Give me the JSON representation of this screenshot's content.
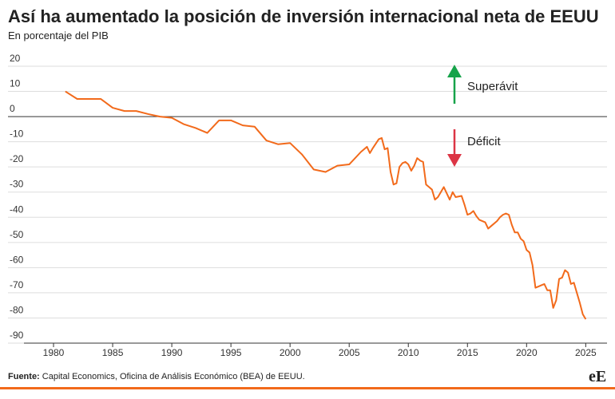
{
  "chart_data": {
    "type": "line",
    "title": "Así ha aumentado la posición de inversión internacional neta de EEUU",
    "subtitle": "En porcentaje del PIB",
    "annotations": [
      "Superávit",
      "Déficit"
    ],
    "source_label": "Fuente:",
    "source_text": "Capital Economics, Oficina de Análisis Económico (BEA) de EEUU.",
    "logo": "eE",
    "xlim": [
      1977.5,
      2026.8
    ],
    "xticks": [
      1980,
      1985,
      1990,
      1995,
      2000,
      2005,
      2010,
      2015,
      2020,
      2025
    ],
    "ylim": [
      -90,
      20
    ],
    "yticks": [
      -90,
      -80,
      -70,
      -60,
      -50,
      -40,
      -30,
      -20,
      -10,
      0,
      10,
      20
    ],
    "grid": true,
    "x": [
      1981,
      1982,
      1983,
      1984,
      1985,
      1986,
      1987,
      1988,
      1989,
      1990,
      1991,
      1992,
      1993,
      1994,
      1995,
      1996,
      1997,
      1998,
      1999,
      2000,
      2001,
      2002,
      2003,
      2004,
      2005,
      2006,
      2006.5,
      2006.75,
      2007,
      2007.5,
      2007.75,
      2008,
      2008.25,
      2008.5,
      2008.75,
      2009,
      2009.25,
      2009.5,
      2009.75,
      2010,
      2010.25,
      2010.5,
      2010.75,
      2011,
      2011.25,
      2011.5,
      2011.75,
      2012,
      2012.25,
      2012.5,
      2012.75,
      2013,
      2013.25,
      2013.5,
      2013.75,
      2014,
      2014.5,
      2014.75,
      2015,
      2015.25,
      2015.5,
      2015.75,
      2016,
      2016.5,
      2016.75,
      2017,
      2017.5,
      2017.75,
      2018,
      2018.25,
      2018.5,
      2018.75,
      2019,
      2019.25,
      2019.5,
      2019.75,
      2020,
      2020.25,
      2020.5,
      2020.75,
      2021,
      2021.25,
      2021.5,
      2021.75,
      2022,
      2022.25,
      2022.5,
      2022.75,
      2023,
      2023.25,
      2023.5,
      2023.75,
      2024,
      2024.25,
      2024.5,
      2024.75,
      2025
    ],
    "series": [
      {
        "name": "Posición de inversión internacional neta",
        "color": "#f26a1b",
        "values": [
          10,
          7,
          7,
          7,
          3.5,
          2.2,
          2.2,
          1,
          0,
          -0.5,
          -3,
          -4.5,
          -6.5,
          -1.5,
          -1.5,
          -3.5,
          -4,
          -9.5,
          -11,
          -10.5,
          -15,
          -21,
          -22,
          -19.5,
          -19,
          -14,
          -12,
          -14.5,
          -12.5,
          -9,
          -8.5,
          -13,
          -12.5,
          -22,
          -27,
          -26.5,
          -20,
          -18.5,
          -18,
          -19,
          -21.5,
          -19.5,
          -16.5,
          -17.5,
          -18,
          -27,
          -28,
          -29,
          -33,
          -32,
          -30,
          -28,
          -30.5,
          -33,
          -30,
          -32,
          -31.5,
          -35,
          -39,
          -38.5,
          -37.5,
          -39.5,
          -41,
          -42,
          -44.5,
          -43.5,
          -41.5,
          -40,
          -39,
          -38.5,
          -39,
          -43,
          -46,
          -46,
          -48.5,
          -49.5,
          -53,
          -54,
          -59,
          -68,
          -67.5,
          -67,
          -66.5,
          -69,
          -69,
          -76,
          -73,
          -64.5,
          -64,
          -61,
          -62,
          -66.5,
          -66,
          -70,
          -74,
          -78.5,
          -80.5
        ]
      }
    ]
  }
}
